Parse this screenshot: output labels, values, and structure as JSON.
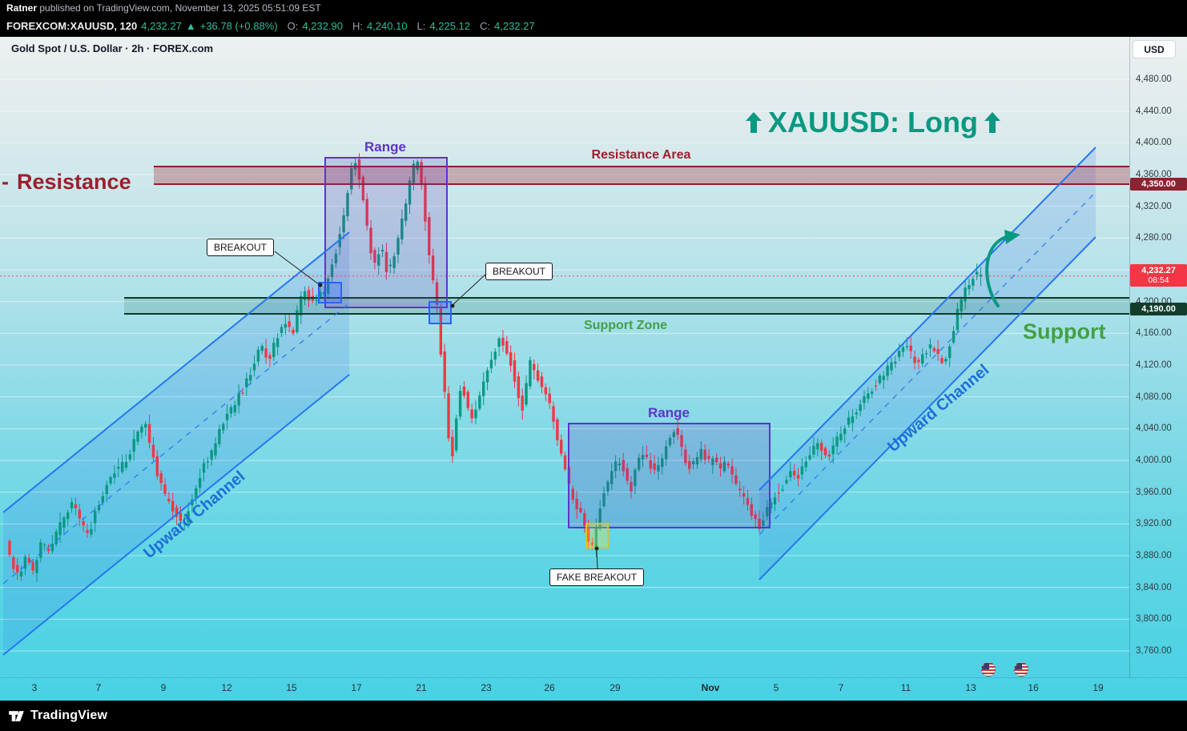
{
  "publish_bar": {
    "author": "Ratner",
    "details": " published on TradingView.com, November 13, 2025 05:51:09 EST"
  },
  "symbol_bar": {
    "symbol_interval": "FOREXCOM:XAUUSD, 120",
    "last_price": "4,232.27",
    "up_triangle": "▲",
    "change": "+36.78 (+0.88%)",
    "open_label": "O:",
    "open": "4,232.90",
    "high_label": "H:",
    "high": "4,240.10",
    "low_label": "L:",
    "low": "4,225.12",
    "close_label": "C:",
    "close": "4,232.27"
  },
  "chart_header": {
    "title": "Gold Spot / U.S. Dollar · 2h · FOREX.com",
    "currency_button": "USD"
  },
  "annotations": {
    "trade_idea": "XAUUSD: Long",
    "resistance_dash": "-",
    "resistance_left": "Resistance",
    "resistance_area": "Resistance Area",
    "support_zone": "Support Zone",
    "support_right": "Support",
    "range_top": "Range",
    "range_bottom": "Range",
    "upward_channel_left": "Upward Channel",
    "upward_channel_right": "Upward Channel",
    "breakout_left": "BREAKOUT",
    "breakout_mid": "BREAKOUT",
    "fake_breakout": "FAKE BREAKOUT"
  },
  "price_tags": {
    "resistance_level": "4,350.00",
    "last_price": "4,232.27",
    "countdown": "08:54",
    "support_level": "4,190.00"
  },
  "price_axis": [
    "4,480.00",
    "4,440.00",
    "4,400.00",
    "4,360.00",
    "4,320.00",
    "4,280.00",
    "4,240.00",
    "4,200.00",
    "4,160.00",
    "4,120.00",
    "4,080.00",
    "4,040.00",
    "4,000.00",
    "3,960.00",
    "3,920.00",
    "3,880.00",
    "3,840.00",
    "3,800.00",
    "3,760.00"
  ],
  "time_axis": [
    "3",
    "7",
    "9",
    "12",
    "15",
    "17",
    "21",
    "23",
    "26",
    "29",
    "Nov",
    "5",
    "7",
    "11",
    "13",
    "16",
    "19"
  ],
  "footer": {
    "brand": "TradingView"
  },
  "chart_data": {
    "type": "candlestick",
    "symbol": "FOREXCOM:XAUUSD",
    "interval": "120",
    "title": "Gold Spot / U.S. Dollar · 2h · FOREX.com",
    "ohlc": {
      "open": 4232.9,
      "high": 4240.1,
      "low": 4225.12,
      "close": 4232.27,
      "change": 36.78,
      "change_pct": 0.88
    },
    "levels": {
      "resistance_zone": [
        4348,
        4370
      ],
      "support_zone": [
        4185,
        4205
      ],
      "tagged_levels": [
        4350.0,
        4232.27,
        4190.0
      ]
    },
    "y_axis": {
      "ticks": [
        4480,
        4440,
        4400,
        4360,
        4320,
        4280,
        4240,
        4200,
        4160,
        4120,
        4080,
        4040,
        4000,
        3960,
        3920,
        3880,
        3840,
        3800,
        3760
      ]
    },
    "x_axis_labels": [
      "3",
      "7",
      "9",
      "12",
      "15",
      "17",
      "21",
      "23",
      "26",
      "29",
      "Nov",
      "5",
      "7",
      "11",
      "13",
      "16",
      "19"
    ],
    "price_path_units": {
      "x": "px",
      "y": "USD"
    },
    "price_path": [
      [
        12,
        3898
      ],
      [
        20,
        3872
      ],
      [
        28,
        3852
      ],
      [
        36,
        3878
      ],
      [
        46,
        3862
      ],
      [
        56,
        3896
      ],
      [
        66,
        3888
      ],
      [
        76,
        3910
      ],
      [
        86,
        3932
      ],
      [
        96,
        3945
      ],
      [
        106,
        3918
      ],
      [
        116,
        3908
      ],
      [
        126,
        3942
      ],
      [
        136,
        3962
      ],
      [
        146,
        3985
      ],
      [
        156,
        3992
      ],
      [
        166,
        4008
      ],
      [
        176,
        4032
      ],
      [
        186,
        4046
      ],
      [
        194,
        4012
      ],
      [
        202,
        3978
      ],
      [
        212,
        3952
      ],
      [
        222,
        3938
      ],
      [
        232,
        3916
      ],
      [
        240,
        3940
      ],
      [
        250,
        3968
      ],
      [
        260,
        3996
      ],
      [
        270,
        4012
      ],
      [
        280,
        4042
      ],
      [
        290,
        4058
      ],
      [
        300,
        4076
      ],
      [
        310,
        4092
      ],
      [
        320,
        4118
      ],
      [
        330,
        4144
      ],
      [
        340,
        4128
      ],
      [
        350,
        4152
      ],
      [
        360,
        4178
      ],
      [
        370,
        4158
      ],
      [
        378,
        4198
      ],
      [
        386,
        4214
      ],
      [
        394,
        4196
      ],
      [
        402,
        4206
      ],
      [
        410,
        4212
      ],
      [
        418,
        4244
      ],
      [
        426,
        4270
      ],
      [
        434,
        4312
      ],
      [
        442,
        4360
      ],
      [
        448,
        4378
      ],
      [
        454,
        4356
      ],
      [
        460,
        4318
      ],
      [
        466,
        4270
      ],
      [
        472,
        4244
      ],
      [
        480,
        4272
      ],
      [
        488,
        4238
      ],
      [
        496,
        4252
      ],
      [
        504,
        4290
      ],
      [
        512,
        4328
      ],
      [
        520,
        4368
      ],
      [
        526,
        4378
      ],
      [
        532,
        4340
      ],
      [
        538,
        4284
      ],
      [
        544,
        4232
      ],
      [
        550,
        4196
      ],
      [
        556,
        4128
      ],
      [
        562,
        4060
      ],
      [
        568,
        3992
      ],
      [
        574,
        4052
      ],
      [
        580,
        4094
      ],
      [
        588,
        4072
      ],
      [
        596,
        4048
      ],
      [
        604,
        4086
      ],
      [
        612,
        4114
      ],
      [
        620,
        4132
      ],
      [
        628,
        4152
      ],
      [
        636,
        4142
      ],
      [
        644,
        4118
      ],
      [
        652,
        4082
      ],
      [
        658,
        4064
      ],
      [
        666,
        4126
      ],
      [
        674,
        4108
      ],
      [
        682,
        4094
      ],
      [
        690,
        4072
      ],
      [
        698,
        4040
      ],
      [
        706,
        4008
      ],
      [
        714,
        3972
      ],
      [
        722,
        3948
      ],
      [
        730,
        3932
      ],
      [
        738,
        3902
      ],
      [
        745,
        3888
      ],
      [
        752,
        3932
      ],
      [
        760,
        3962
      ],
      [
        768,
        3984
      ],
      [
        776,
        4002
      ],
      [
        784,
        3986
      ],
      [
        792,
        3960
      ],
      [
        800,
        3994
      ],
      [
        808,
        4012
      ],
      [
        816,
        3994
      ],
      [
        824,
        3984
      ],
      [
        832,
        4002
      ],
      [
        840,
        4026
      ],
      [
        848,
        4042
      ],
      [
        856,
        4014
      ],
      [
        864,
        3990
      ],
      [
        872,
        4000
      ],
      [
        880,
        4014
      ],
      [
        888,
        3996
      ],
      [
        896,
        4006
      ],
      [
        904,
        3986
      ],
      [
        912,
        3998
      ],
      [
        920,
        3976
      ],
      [
        928,
        3960
      ],
      [
        936,
        3950
      ],
      [
        944,
        3932
      ],
      [
        952,
        3916
      ],
      [
        960,
        3934
      ],
      [
        968,
        3950
      ],
      [
        976,
        3960
      ],
      [
        984,
        3970
      ],
      [
        992,
        3986
      ],
      [
        1000,
        3978
      ],
      [
        1008,
        3996
      ],
      [
        1016,
        4010
      ],
      [
        1024,
        4020
      ],
      [
        1032,
        4012
      ],
      [
        1040,
        4006
      ],
      [
        1048,
        4024
      ],
      [
        1056,
        4038
      ],
      [
        1064,
        4050
      ],
      [
        1072,
        4062
      ],
      [
        1080,
        4070
      ],
      [
        1088,
        4084
      ],
      [
        1096,
        4094
      ],
      [
        1104,
        4104
      ],
      [
        1112,
        4114
      ],
      [
        1120,
        4122
      ],
      [
        1128,
        4136
      ],
      [
        1136,
        4144
      ],
      [
        1144,
        4130
      ],
      [
        1152,
        4122
      ],
      [
        1160,
        4136
      ],
      [
        1168,
        4144
      ],
      [
        1176,
        4130
      ],
      [
        1184,
        4124
      ],
      [
        1192,
        4152
      ],
      [
        1200,
        4186
      ],
      [
        1208,
        4212
      ],
      [
        1216,
        4224
      ],
      [
        1222,
        4238
      ],
      [
        1228,
        4232
      ]
    ]
  }
}
